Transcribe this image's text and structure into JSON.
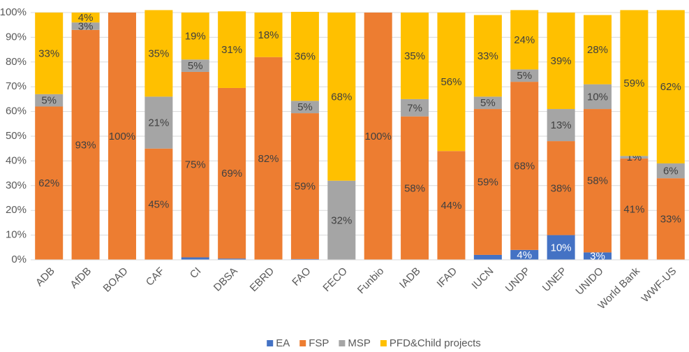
{
  "chart_data": {
    "type": "stacked_bar",
    "categories": [
      "ADB",
      "AfDB",
      "BOAD",
      "CAF",
      "CI",
      "DBSA",
      "EBRD",
      "FAO",
      "FECO",
      "Funbio",
      "IADB",
      "IFAD",
      "IUCN",
      "UNDP",
      "UNEP",
      "UNIDO",
      "World Bank",
      "WWF-US"
    ],
    "series": [
      {
        "name": "EA",
        "color": "#4472c4",
        "values": [
          0,
          0,
          0,
          0,
          1,
          0.5,
          0,
          0.3,
          0,
          0,
          0,
          0,
          2,
          4,
          10,
          3,
          0,
          0
        ],
        "value_labels": [
          null,
          null,
          null,
          null,
          null,
          null,
          null,
          null,
          null,
          null,
          null,
          null,
          null,
          "4%",
          "10%",
          "3%",
          null,
          null
        ]
      },
      {
        "name": "FSP",
        "color": "#ed7d31",
        "values": [
          62,
          93,
          100,
          45,
          75,
          69,
          82,
          59,
          0,
          100,
          58,
          44,
          59,
          68,
          38,
          58,
          41,
          33
        ],
        "value_labels": [
          "62%",
          "93%",
          "100%",
          "45%",
          "75%",
          "69%",
          "82%",
          "59%",
          null,
          "100%",
          "58%",
          "44%",
          "59%",
          "68%",
          "38%",
          "58%",
          "41%",
          "33%"
        ]
      },
      {
        "name": "MSP",
        "color": "#a5a5a5",
        "values": [
          5,
          3,
          0,
          21,
          5,
          0,
          0,
          5,
          32,
          0,
          7,
          0,
          5,
          5,
          13,
          10,
          1,
          6
        ],
        "value_labels": [
          "5%",
          "3%",
          null,
          "21%",
          "5%",
          null,
          null,
          "5%",
          "32%",
          null,
          "7%",
          null,
          "5%",
          "5%",
          "13%",
          "10%",
          "1%",
          "6%"
        ]
      },
      {
        "name": "PFD&Child projects",
        "color": "#ffc000",
        "values": [
          33,
          4,
          0,
          35,
          19,
          31,
          18,
          36,
          68,
          0,
          35,
          56,
          33,
          24,
          39,
          28,
          59,
          62
        ],
        "value_labels": [
          "33%",
          "4%",
          null,
          "35%",
          "19%",
          "31%",
          "18%",
          "36%",
          "68%",
          null,
          "35%",
          "56%",
          "33%",
          "24%",
          "39%",
          "28%",
          "59%",
          "62%"
        ]
      }
    ],
    "ylim": [
      0,
      100
    ],
    "yticks": [
      {
        "value": 0,
        "label": "0%"
      },
      {
        "value": 10,
        "label": "10%"
      },
      {
        "value": 20,
        "label": "20%"
      },
      {
        "value": 30,
        "label": "30%"
      },
      {
        "value": 40,
        "label": "40%"
      },
      {
        "value": 50,
        "label": "50%"
      },
      {
        "value": 60,
        "label": "60%"
      },
      {
        "value": 70,
        "label": "70%"
      },
      {
        "value": 80,
        "label": "80%"
      },
      {
        "value": 90,
        "label": "90%"
      },
      {
        "value": 100,
        "label": "100%"
      }
    ],
    "grid": true,
    "legend": "bottom"
  }
}
